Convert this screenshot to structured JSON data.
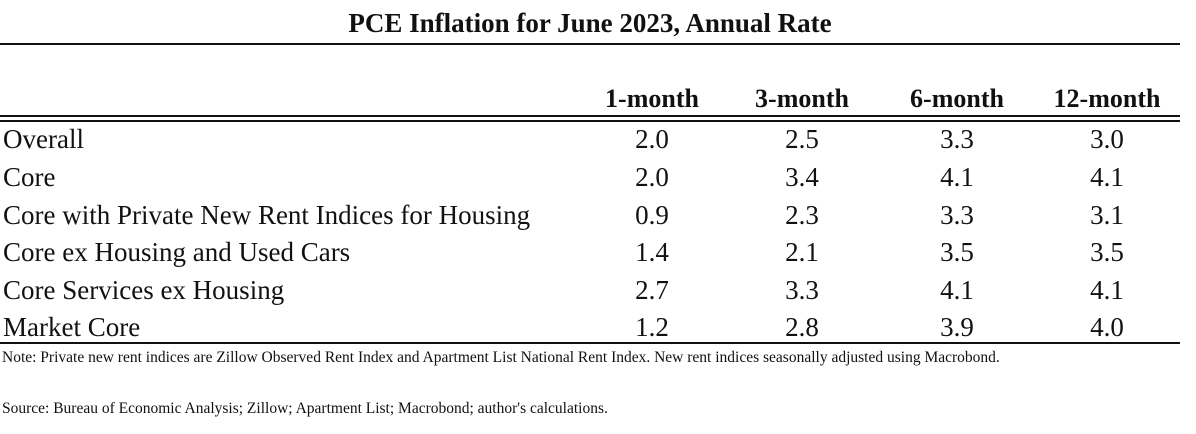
{
  "title": "PCE Inflation for June 2023, Annual Rate",
  "columns": [
    "1-month",
    "3-month",
    "6-month",
    "12-month"
  ],
  "rows": [
    {
      "label": "Overall",
      "values": [
        "2.0",
        "2.5",
        "3.3",
        "3.0"
      ]
    },
    {
      "label": "Core",
      "values": [
        "2.0",
        "3.4",
        "4.1",
        "4.1"
      ]
    },
    {
      "label": "Core with Private New Rent Indices for Housing",
      "values": [
        "0.9",
        "2.3",
        "3.3",
        "3.1"
      ]
    },
    {
      "label": "Core ex Housing and Used Cars",
      "values": [
        "1.4",
        "2.1",
        "3.5",
        "3.5"
      ]
    },
    {
      "label": "Core Services ex Housing",
      "values": [
        "2.7",
        "3.3",
        "4.1",
        "4.1"
      ]
    },
    {
      "label": "Market Core",
      "values": [
        "1.2",
        "2.8",
        "3.9",
        "4.0"
      ]
    }
  ],
  "note": "Note: Private new rent indices are Zillow Observed Rent Index and Apartment List National Rent Index. New rent indices seasonally adjusted using Macrobond.",
  "source": "Source: Bureau of Economic Analysis; Zillow; Apartment List; Macrobond; author's calculations."
}
